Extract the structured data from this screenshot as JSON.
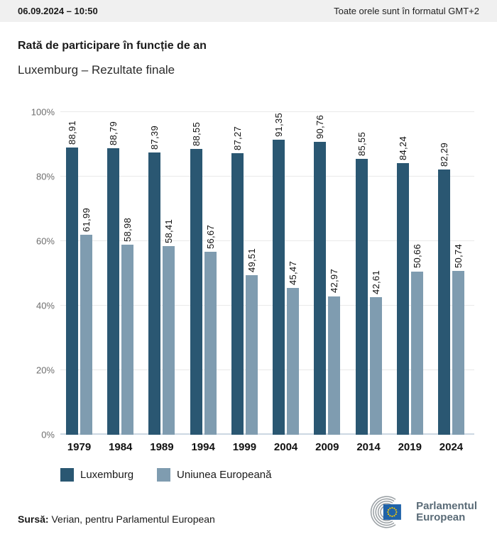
{
  "header": {
    "datetime": "06.09.2024 – 10:50",
    "timezone_note": "Toate orele sunt în formatul GMT+2"
  },
  "title": "Rată de participare în funcție de an",
  "subtitle": "Luxemburg – Rezultate finale",
  "chart_data": {
    "type": "bar",
    "title": "Rată de participare în funcție de an",
    "subtitle": "Luxemburg – Rezultate finale",
    "categories": [
      "1979",
      "1984",
      "1989",
      "1994",
      "1999",
      "2004",
      "2009",
      "2014",
      "2019",
      "2024"
    ],
    "series": [
      {
        "name": "Luxemburg",
        "color": "#2a5772",
        "values": [
          88.91,
          88.79,
          87.39,
          88.55,
          87.27,
          91.35,
          90.76,
          85.55,
          84.24,
          82.29
        ],
        "labels": [
          "88,91",
          "88,79",
          "87,39",
          "88,55",
          "87,27",
          "91,35",
          "90,76",
          "85,55",
          "84,24",
          "82,29"
        ]
      },
      {
        "name": "Uniunea Europeană",
        "color": "#7f9cb0",
        "values": [
          61.99,
          58.98,
          58.41,
          56.67,
          49.51,
          45.47,
          42.97,
          42.61,
          50.66,
          50.74
        ],
        "labels": [
          "61,99",
          "58,98",
          "58,41",
          "56,67",
          "49,51",
          "45,47",
          "42,97",
          "42,61",
          "50,66",
          "50,74"
        ]
      }
    ],
    "xlabel": "",
    "ylabel": "",
    "ylim": [
      0,
      100
    ],
    "yticks": [
      "0%",
      "20%",
      "40%",
      "60%",
      "80%",
      "100%"
    ],
    "grid": true,
    "legend_position": "bottom",
    "value_label_orientation": "vertical"
  },
  "legend": {
    "items": [
      {
        "label": "Luxemburg",
        "color": "#2a5772"
      },
      {
        "label": "Uniunea Europeană",
        "color": "#7f9cb0"
      }
    ]
  },
  "footer": {
    "source_label": "Sursă:",
    "source_text": "Verian, pentru Parlamentul European",
    "logo_line1": "Parlamentul",
    "logo_line2": "European"
  },
  "colors": {
    "topbar_bg": "#f0f0f0",
    "gridline": "#e9e9e9",
    "baseline": "#ccd7e2",
    "ytick_text": "#6e6e6e",
    "eu_flag_blue": "#1f62a8",
    "eu_star_yellow": "#f7c900",
    "hemicycle_gray": "#9aa0a4",
    "logo_text": "#5a6b77"
  }
}
